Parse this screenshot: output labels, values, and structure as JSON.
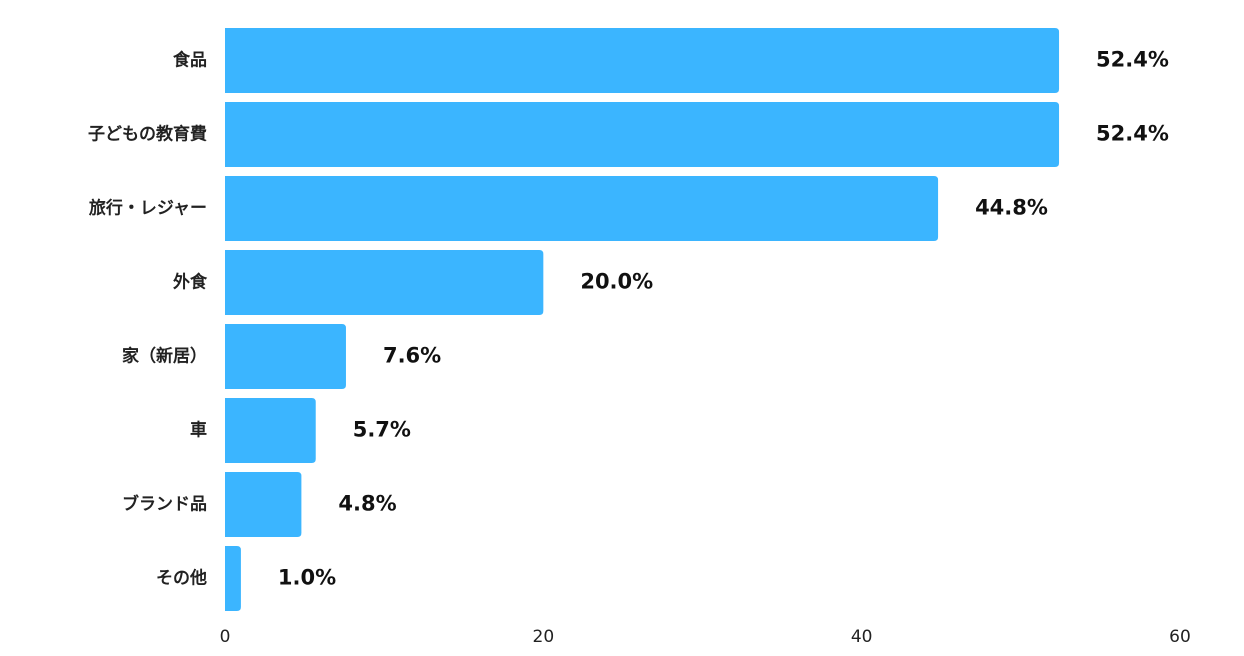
{
  "chart_data": {
    "type": "bar",
    "orientation": "horizontal",
    "categories": [
      "食品",
      "子どもの教育費",
      "旅行・レジャー",
      "外食",
      "家（新居）",
      "車",
      "ブランド品",
      "その他"
    ],
    "values": [
      52.4,
      52.4,
      44.8,
      20.0,
      7.6,
      5.7,
      4.8,
      1.0
    ],
    "value_labels": [
      "52.4%",
      "52.4%",
      "44.8%",
      "20.0%",
      "7.6%",
      "5.7%",
      "4.8%",
      "1.0%"
    ],
    "xlim": [
      0,
      60
    ],
    "xticks": [
      0,
      20,
      40,
      60
    ],
    "xtick_labels": [
      "0",
      "20",
      "40",
      "60"
    ],
    "title": "",
    "xlabel": "",
    "ylabel": "",
    "grid": false,
    "bar_color": "#3bb5ff"
  }
}
